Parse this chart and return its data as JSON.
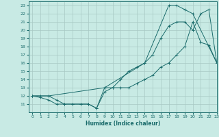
{
  "xlabel": "Humidex (Indice chaleur)",
  "xlim": [
    -0.5,
    23
  ],
  "ylim": [
    10,
    23.5
  ],
  "xticks": [
    0,
    1,
    2,
    3,
    4,
    5,
    6,
    7,
    8,
    9,
    10,
    11,
    12,
    13,
    14,
    15,
    16,
    17,
    18,
    19,
    20,
    21,
    22,
    23
  ],
  "yticks": [
    11,
    12,
    13,
    14,
    15,
    16,
    17,
    18,
    19,
    20,
    21,
    22,
    23
  ],
  "bg_color": "#c8eae4",
  "grid_color": "#a8c8c4",
  "line_color": "#1a6b6b",
  "line1": {
    "x": [
      0,
      1,
      2,
      3,
      4,
      5,
      6,
      7,
      8,
      9,
      10,
      11,
      12,
      13,
      14,
      15,
      16,
      17,
      18,
      19,
      20,
      21,
      22,
      23
    ],
    "y": [
      12,
      11.8,
      11.5,
      11,
      11,
      11,
      11,
      11,
      10.5,
      12.5,
      13,
      13,
      13,
      13.5,
      14,
      14.5,
      15.5,
      16,
      17,
      18,
      21,
      18.5,
      18.2,
      16
    ]
  },
  "line2": {
    "x": [
      0,
      1,
      2,
      3,
      4,
      5,
      6,
      7,
      8,
      9,
      10,
      11,
      12,
      13,
      14,
      15,
      16,
      17,
      18,
      19,
      20,
      21,
      22,
      23
    ],
    "y": [
      12,
      12,
      12,
      11.5,
      11,
      11,
      11,
      11,
      10.5,
      13,
      13,
      14,
      15,
      15.5,
      16,
      17,
      19,
      20.5,
      21,
      21,
      20,
      22,
      22.5,
      16
    ]
  },
  "line3": {
    "x": [
      0,
      2,
      9,
      14,
      17,
      18,
      19,
      20,
      22,
      23
    ],
    "y": [
      12,
      12,
      13,
      16,
      23,
      23,
      22.5,
      22,
      18,
      16
    ]
  }
}
